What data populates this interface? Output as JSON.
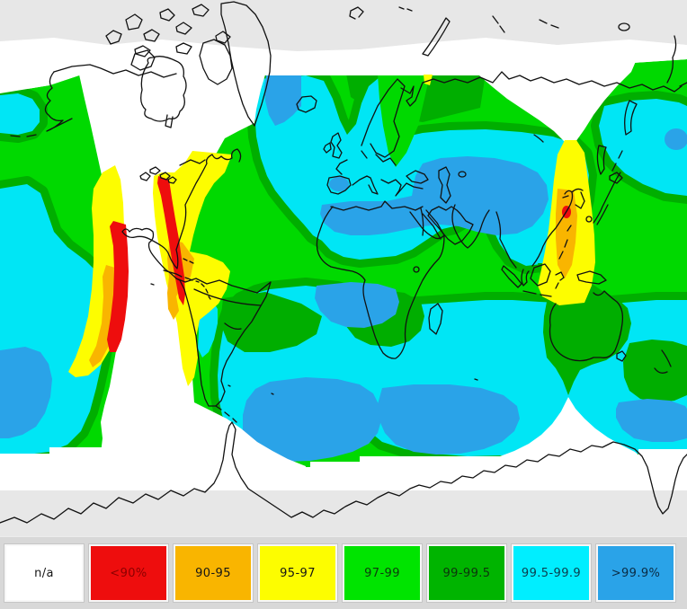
{
  "map": {
    "description": "world availability coverage map",
    "colors": {
      "na_white": "#ffffff",
      "red_lt90": "#ee0d0d",
      "orange_90_95": "#f9b500",
      "yellow_95_97": "#fdfd00",
      "green_97_99": "#00d900",
      "darkgreen_99_995": "#00ae00",
      "cyan_995_999": "#00e6f5",
      "blue_gt999": "#2aa3e8",
      "gray_band": "#e7e7e7",
      "legend_bg": "#d8d8d8",
      "coastline": "#111111"
    }
  },
  "legend": {
    "items": [
      {
        "label": "n/a",
        "color": "#ffffff",
        "text_color": "#151515"
      },
      {
        "label": "<90%",
        "color": "#ee0d0d",
        "text_color": "#8b0000"
      },
      {
        "label": "90-95",
        "color": "#f9b500",
        "text_color": "#151515"
      },
      {
        "label": "95-97",
        "color": "#fdfd00",
        "text_color": "#151515"
      },
      {
        "label": "97-99",
        "color": "#00e400",
        "text_color": "#0d3b0d"
      },
      {
        "label": "99-99.5",
        "color": "#00b400",
        "text_color": "#0d330d"
      },
      {
        "label": "99.5-99.9",
        "color": "#00eeff",
        "text_color": "#0b3d4d"
      },
      {
        "label": ">99.9%",
        "color": "#2aa3e8",
        "text_color": "#0a2b44"
      }
    ]
  }
}
